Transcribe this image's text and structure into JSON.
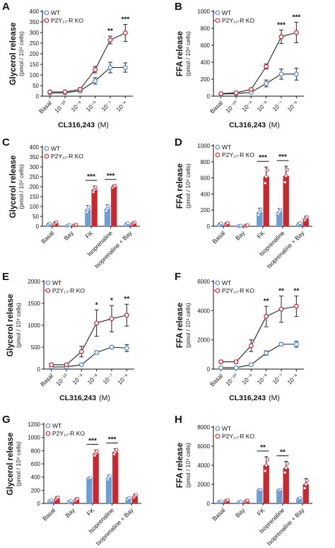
{
  "colors": {
    "wt": "#5b8dd0",
    "ko": "#c8303a",
    "wt_fill": "#6b9fd4",
    "ko_fill": "#c8282f",
    "axis": "#111111"
  },
  "chart_data": [
    {
      "panel": "A",
      "type": "line",
      "ylabel": "Glycerol release",
      "ylabel_sub": "(pmol / 10⁴ cells)",
      "xlabel": "CL316,243",
      "xlabel_unit": "(M)",
      "categories": [
        "Basal",
        "10⁻¹⁰",
        "10⁻⁹",
        "10⁻⁸",
        "10⁻⁷",
        "10⁻⁶"
      ],
      "yticks": [
        0,
        50,
        100,
        150,
        200,
        250,
        300,
        350,
        400
      ],
      "ylim": [
        0,
        400
      ],
      "series": [
        {
          "name": "WT",
          "key": "wt",
          "values": [
            15,
            16,
            25,
            72,
            135,
            135
          ],
          "err": [
            5,
            5,
            8,
            15,
            25,
            22
          ]
        },
        {
          "name": "P2Y₁₃-R KO",
          "key": "ko",
          "values": [
            20,
            20,
            32,
            125,
            265,
            298
          ],
          "err": [
            6,
            6,
            8,
            15,
            18,
            40
          ]
        }
      ],
      "annotations": [
        {
          "index": 4,
          "text": "**"
        },
        {
          "index": 5,
          "text": "***"
        }
      ]
    },
    {
      "panel": "B",
      "type": "line",
      "ylabel": "FFA release",
      "ylabel_sub": "(pmol / 10⁴ cells)",
      "xlabel": "CL316,243",
      "xlabel_unit": "(M)",
      "categories": [
        "Basal",
        "10⁻¹⁰",
        "10⁻⁹",
        "10⁻⁸",
        "10⁻⁷",
        "10⁻⁶"
      ],
      "yticks": [
        0,
        200,
        400,
        600,
        800,
        1000
      ],
      "ylim": [
        0,
        1000
      ],
      "series": [
        {
          "name": "WT",
          "key": "wt",
          "values": [
            25,
            30,
            45,
            150,
            260,
            260
          ],
          "err": [
            5,
            5,
            10,
            40,
            60,
            70
          ]
        },
        {
          "name": "P2Y₁₃-R KO",
          "key": "ko",
          "values": [
            30,
            40,
            80,
            350,
            700,
            750
          ],
          "err": [
            8,
            8,
            15,
            30,
            80,
            120
          ]
        }
      ],
      "annotations": [
        {
          "index": 4,
          "text": "***"
        },
        {
          "index": 5,
          "text": "***"
        }
      ]
    },
    {
      "panel": "C",
      "type": "bar",
      "ylabel": "Glycerol release",
      "ylabel_sub": "(pmol / 10⁴ cells)",
      "categories": [
        "Basal",
        "Bay",
        "FK",
        "Isoprenaline",
        "Isoprenaline + Bay"
      ],
      "yticks": [
        0,
        50,
        100,
        150,
        200,
        250,
        300,
        350,
        400
      ],
      "ylim": [
        0,
        400
      ],
      "series": [
        {
          "name": "WT",
          "key": "wt",
          "values": [
            10,
            5,
            85,
            90,
            12
          ],
          "err": [
            6,
            3,
            20,
            18,
            6
          ]
        },
        {
          "name": "P2Y₁₃-R KO",
          "key": "ko",
          "values": [
            15,
            6,
            185,
            200,
            15
          ],
          "err": [
            8,
            3,
            18,
            8,
            6
          ]
        }
      ],
      "brackets": [
        {
          "index": 2,
          "text": "***"
        },
        {
          "index": 3,
          "text": "***"
        }
      ]
    },
    {
      "panel": "D",
      "type": "bar",
      "ylabel": "FFA release",
      "ylabel_sub": "(pmol / 10⁴ cells)",
      "categories": [
        "Basal",
        "Bay",
        "FK",
        "Isoprenaline",
        "Isoprenaline + Bay"
      ],
      "yticks": [
        0,
        200,
        400,
        600,
        800,
        1000
      ],
      "ylim": [
        0,
        1000
      ],
      "series": [
        {
          "name": "WT",
          "key": "wt",
          "values": [
            25,
            5,
            175,
            180,
            30
          ],
          "err": [
            15,
            5,
            50,
            40,
            15
          ]
        },
        {
          "name": "P2Y₁₃-R KO",
          "key": "ko",
          "values": [
            30,
            10,
            615,
            625,
            95
          ],
          "err": [
            15,
            5,
            120,
            120,
            30
          ]
        }
      ],
      "brackets": [
        {
          "index": 2,
          "text": "***"
        },
        {
          "index": 3,
          "text": "***"
        }
      ]
    },
    {
      "panel": "E",
      "type": "line",
      "ylabel": "Glycerol release",
      "ylabel_sub": "(pmol / 10⁴ cells)",
      "xlabel": "CL316,243",
      "xlabel_unit": "(M)",
      "categories": [
        "Basal",
        "10⁻¹⁰",
        "10⁻⁹",
        "10⁻⁸",
        "10⁻⁷",
        "10⁻⁶"
      ],
      "yticks": [
        0,
        500,
        1000,
        1500,
        2000
      ],
      "ylim": [
        0,
        2000
      ],
      "series": [
        {
          "name": "WT",
          "key": "wt",
          "values": [
            50,
            50,
            100,
            380,
            500,
            480
          ],
          "err": [
            15,
            15,
            30,
            40,
            30,
            80
          ]
        },
        {
          "name": "P2Y₁₃-R KO",
          "key": "ko",
          "values": [
            100,
            100,
            400,
            1050,
            1150,
            1230
          ],
          "err": [
            30,
            30,
            120,
            300,
            300,
            250
          ]
        }
      ],
      "annotations": [
        {
          "index": 3,
          "text": "*"
        },
        {
          "index": 4,
          "text": "*"
        },
        {
          "index": 5,
          "text": "**"
        }
      ]
    },
    {
      "panel": "F",
      "type": "line",
      "ylabel": "FFA release",
      "ylabel_sub": "(pmol / 10⁴ cells)",
      "xlabel": "CL316,243",
      "xlabel_unit": "(M)",
      "categories": [
        "Basal",
        "10⁻¹⁰",
        "10⁻⁹",
        "10⁻⁸",
        "10⁻⁷",
        "10⁻⁶"
      ],
      "yticks": [
        0,
        2000,
        4000,
        6000
      ],
      "ylim": [
        0,
        6000
      ],
      "series": [
        {
          "name": "WT",
          "key": "wt",
          "values": [
            100,
            100,
            300,
            1100,
            1700,
            1700
          ],
          "err": [
            50,
            50,
            100,
            150,
            100,
            200
          ]
        },
        {
          "name": "P2Y₁₃-R KO",
          "key": "ko",
          "values": [
            500,
            500,
            1600,
            3600,
            4100,
            4300
          ],
          "err": [
            100,
            100,
            400,
            700,
            900,
            700
          ]
        }
      ],
      "annotations": [
        {
          "index": 3,
          "text": "**"
        },
        {
          "index": 4,
          "text": "**"
        },
        {
          "index": 5,
          "text": "**"
        }
      ]
    },
    {
      "panel": "G",
      "type": "bar",
      "ylabel": "Glycerol release",
      "ylabel_sub": "(pmol / 10⁴ cells)",
      "categories": [
        "Basal",
        "Bay",
        "FK",
        "Isoprenaline",
        "Isoprenaline + Bay"
      ],
      "yticks": [
        0,
        200,
        400,
        600,
        800,
        1000,
        1200
      ],
      "ylim": [
        0,
        1200
      ],
      "series": [
        {
          "name": "WT",
          "key": "wt",
          "values": [
            40,
            30,
            380,
            390,
            70
          ],
          "err": [
            15,
            15,
            10,
            40,
            20
          ]
        },
        {
          "name": "P2Y₁₃-R KO",
          "key": "ko",
          "values": [
            75,
            55,
            760,
            780,
            110
          ],
          "err": [
            25,
            25,
            50,
            50,
            30
          ]
        }
      ],
      "brackets": [
        {
          "index": 2,
          "text": "***"
        },
        {
          "index": 3,
          "text": "***"
        }
      ]
    },
    {
      "panel": "H",
      "type": "bar",
      "ylabel": "FFA release",
      "ylabel_sub": "(pmol / 10⁴ cells)",
      "categories": [
        "Basal",
        "Bay",
        "FK",
        "Isoprenaline",
        "Isoprenaline + Bay"
      ],
      "yticks": [
        0,
        2000,
        4000,
        6000,
        8000
      ],
      "ylim": [
        0,
        8000
      ],
      "series": [
        {
          "name": "WT",
          "key": "wt",
          "values": [
            200,
            150,
            1400,
            1400,
            500
          ],
          "err": [
            50,
            50,
            50,
            100,
            100
          ]
        },
        {
          "name": "P2Y₁₃-R KO",
          "key": "ko",
          "values": [
            300,
            250,
            4000,
            3700,
            2000
          ],
          "err": [
            100,
            100,
            900,
            700,
            600
          ]
        }
      ],
      "brackets": [
        {
          "index": 2,
          "text": "**"
        },
        {
          "index": 3,
          "text": "**"
        }
      ]
    }
  ]
}
